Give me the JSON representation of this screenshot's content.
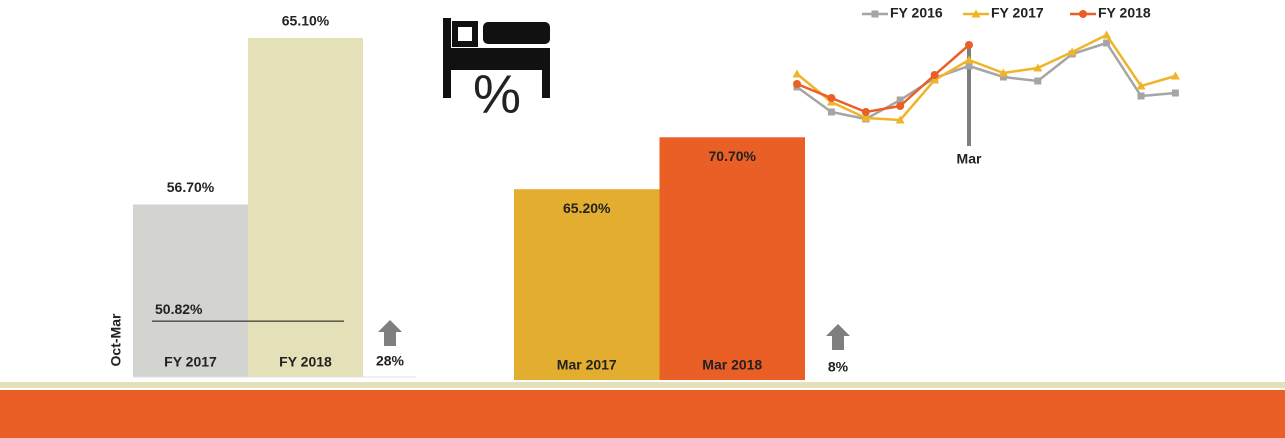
{
  "icon_label": "%",
  "chart_data": [
    {
      "type": "bar",
      "axis_label": "Oct-Mar",
      "categories": [
        "FY 2017",
        "FY 2018"
      ],
      "values": [
        56.7,
        65.1
      ],
      "value_labels": [
        "56.70%",
        "65.10%"
      ],
      "colors": [
        "#d3d3cf",
        "#e4e0b7"
      ],
      "label_position": "outside",
      "ylim": [
        48,
        66
      ],
      "reference_line": {
        "value": 50.82,
        "label": "50.82%"
      },
      "annotation": "28%"
    },
    {
      "type": "bar",
      "categories": [
        "Mar 2017",
        "Mar 2018"
      ],
      "values": [
        65.2,
        70.7
      ],
      "value_labels": [
        "65.20%",
        "70.70%"
      ],
      "colors": [
        "#e3ad2f",
        "#ea5f25"
      ],
      "label_position": "inside",
      "ylim": [
        45,
        72
      ],
      "annotation": "8%"
    },
    {
      "type": "line",
      "legend": "top",
      "categories": [
        null,
        null,
        null,
        null,
        null,
        "Mar",
        null,
        null,
        null,
        null,
        null,
        null
      ],
      "ylim": [
        50,
        75
      ],
      "series": [
        {
          "name": "FY 2016",
          "color": "#a5a5a5",
          "marker": "square",
          "values": [
            60.75,
            54.5,
            52.75,
            57.5,
            63,
            66,
            63.25,
            62.25,
            69,
            71.75,
            58.5,
            59.25
          ]
        },
        {
          "name": "FY 2017",
          "color": "#f0b429",
          "marker": "triangle",
          "values": [
            64,
            57,
            53,
            52.5,
            62.5,
            67.5,
            64.25,
            65.5,
            69.5,
            73.75,
            61,
            63.5
          ]
        },
        {
          "name": "FY 2018",
          "color": "#ea5f25",
          "marker": "circle",
          "values": [
            61.5,
            58,
            54.5,
            56,
            63.75,
            71.25,
            null,
            null,
            null,
            null,
            null,
            null
          ]
        }
      ]
    }
  ]
}
